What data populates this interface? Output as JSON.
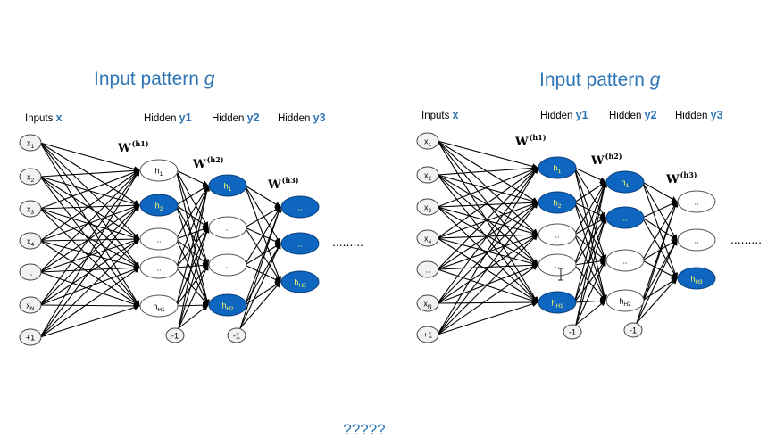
{
  "colors": {
    "accent": "#2e75b6",
    "node_active": "#0f66c0",
    "node_active_text": "#ffff66",
    "edge": "#000000"
  },
  "question": "?????",
  "networks": [
    {
      "title": "Input pattern ",
      "title_var": "g",
      "header_inputs": "Inputs ",
      "var_inputs": "x",
      "header_h1": "Hidden ",
      "var_h1": "y1",
      "header_h2": "Hidden ",
      "var_h2": "y2",
      "header_h3": "Hidden ",
      "var_h3": "y3",
      "w1": "W",
      "w1_sup": "(h1)",
      "w2": "W",
      "w2_sup": "(h2)",
      "w3": "W",
      "w3_sup": "(h3)",
      "continuation": ".........",
      "inputs": [
        {
          "main": "x",
          "sub": "1"
        },
        {
          "main": "x",
          "sub": "2"
        },
        {
          "main": "x",
          "sub": "3"
        },
        {
          "main": "x",
          "sub": "4"
        },
        {
          "main": "..",
          "sub": ""
        },
        {
          "main": "x",
          "sub": "N"
        },
        {
          "main": "+1",
          "sub": ""
        }
      ],
      "layer1": [
        {
          "main": "h",
          "sub": "1",
          "active": false
        },
        {
          "main": "h",
          "sub": "2",
          "active": true
        },
        {
          "main": "..",
          "sub": "",
          "active": false
        },
        {
          "main": "..",
          "sub": "",
          "active": false
        },
        {
          "main": "h",
          "sub": "H1",
          "active": false
        }
      ],
      "bias1": "-1",
      "layer2": [
        {
          "main": "h",
          "sub": "1",
          "active": true
        },
        {
          "main": "..",
          "sub": "",
          "active": false
        },
        {
          "main": "..",
          "sub": "",
          "active": false
        },
        {
          "main": "h",
          "sub": "H2",
          "active": true
        }
      ],
      "bias2": "-1",
      "layer3": [
        {
          "main": "..",
          "sub": "",
          "active": true
        },
        {
          "main": "..",
          "sub": "",
          "active": true
        },
        {
          "main": "h",
          "sub": "H3",
          "active": true
        }
      ]
    },
    {
      "title": "Input pattern ",
      "title_var": "g",
      "header_inputs": "Inputs ",
      "var_inputs": "x",
      "header_h1": "Hidden ",
      "var_h1": "y1",
      "header_h2": "Hidden ",
      "var_h2": "y2",
      "header_h3": "Hidden ",
      "var_h3": "y3",
      "w1": "W",
      "w1_sup": "(h1)",
      "w2": "W",
      "w2_sup": "(h2)",
      "w3": "W",
      "w3_sup": "(h3)",
      "continuation": ".........",
      "inputs": [
        {
          "main": "x",
          "sub": "1"
        },
        {
          "main": "x",
          "sub": "2"
        },
        {
          "main": "x",
          "sub": "3"
        },
        {
          "main": "x",
          "sub": "4"
        },
        {
          "main": "..",
          "sub": ""
        },
        {
          "main": "x",
          "sub": "N"
        },
        {
          "main": "+1",
          "sub": ""
        }
      ],
      "layer1": [
        {
          "main": "h",
          "sub": "1",
          "active": true
        },
        {
          "main": "h",
          "sub": "2",
          "active": true
        },
        {
          "main": "..",
          "sub": "",
          "active": false
        },
        {
          "main": "..",
          "sub": "",
          "active": false
        },
        {
          "main": "h",
          "sub": "H1",
          "active": true
        }
      ],
      "bias1": "-1",
      "layer2": [
        {
          "main": "h",
          "sub": "1",
          "active": true
        },
        {
          "main": "..",
          "sub": "",
          "active": true
        },
        {
          "main": "..",
          "sub": "",
          "active": false
        },
        {
          "main": "h",
          "sub": "H2",
          "active": false
        }
      ],
      "bias2": "-1",
      "layer3": [
        {
          "main": "..",
          "sub": "",
          "active": false
        },
        {
          "main": "..",
          "sub": "",
          "active": false
        },
        {
          "main": "h",
          "sub": "H3",
          "active": true
        }
      ]
    }
  ]
}
